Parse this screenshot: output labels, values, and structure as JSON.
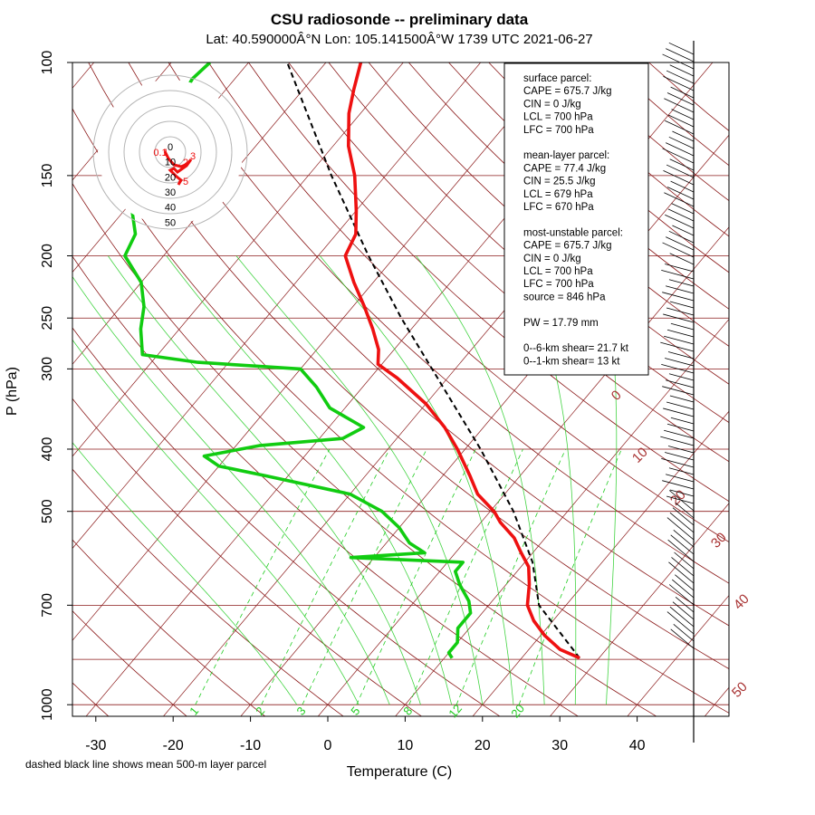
{
  "header": {
    "title": "CSU radiosonde -- preliminary data",
    "subtitle": "Lat: 40.590000Â°N Lon: 105.141500Â°W    1739 UTC  2021-06-27"
  },
  "footnote": "dashed black line shows mean 500-m layer parcel",
  "colors": {
    "temperature": "#ee1111",
    "dewpoint": "#11cc11",
    "isobar": "#8b1a1a",
    "dry_adiabat": "#8b1a1a",
    "mixing_ratio": "#22cc22",
    "moist_adiabat": "#22cc22",
    "parcel": "#000000"
  },
  "chart_data": {
    "type": "skew-t",
    "xlabel": "Temperature (C)",
    "ylabel": "P (hPa)",
    "x_ticks": [
      "-30",
      "-20",
      "-10",
      "0",
      "10",
      "20",
      "30",
      "40"
    ],
    "y_ticks": [
      "100",
      "150",
      "200",
      "250",
      "300",
      "400",
      "500",
      "700",
      "1000"
    ],
    "isobars_hPa": [
      100,
      150,
      200,
      250,
      300,
      400,
      500,
      700,
      850,
      1000
    ],
    "dry_adiabat_labels": [
      "0",
      "10",
      "20",
      "30",
      "40",
      "50"
    ],
    "mixing_ratio_labels": [
      "1",
      "2",
      "3",
      "5",
      "8",
      "12",
      "20"
    ],
    "temperature_profile": [
      {
        "p": 846,
        "t": 27.5
      },
      {
        "p": 820,
        "t": 24.0
      },
      {
        "p": 780,
        "t": 20.5
      },
      {
        "p": 740,
        "t": 17.5
      },
      {
        "p": 700,
        "t": 15.0
      },
      {
        "p": 650,
        "t": 13.0
      },
      {
        "p": 610,
        "t": 11.0
      },
      {
        "p": 580,
        "t": 8.5
      },
      {
        "p": 550,
        "t": 6.0
      },
      {
        "p": 520,
        "t": 2.5
      },
      {
        "p": 500,
        "t": 0.5
      },
      {
        "p": 470,
        "t": -3.5
      },
      {
        "p": 440,
        "t": -6.5
      },
      {
        "p": 400,
        "t": -11.0
      },
      {
        "p": 370,
        "t": -15.0
      },
      {
        "p": 340,
        "t": -20.0
      },
      {
        "p": 310,
        "t": -26.5
      },
      {
        "p": 295,
        "t": -30.5
      },
      {
        "p": 280,
        "t": -32.0
      },
      {
        "p": 260,
        "t": -35.0
      },
      {
        "p": 240,
        "t": -38.5
      },
      {
        "p": 220,
        "t": -42.5
      },
      {
        "p": 200,
        "t": -46.5
      },
      {
        "p": 185,
        "t": -47.5
      },
      {
        "p": 170,
        "t": -50.0
      },
      {
        "p": 150,
        "t": -54.0
      },
      {
        "p": 135,
        "t": -58.0
      },
      {
        "p": 120,
        "t": -61.5
      },
      {
        "p": 110,
        "t": -63.5
      },
      {
        "p": 100,
        "t": -65.5
      }
    ],
    "dewpoint_profile": [
      {
        "p": 846,
        "td": 11.0
      },
      {
        "p": 830,
        "td": 10.0
      },
      {
        "p": 800,
        "td": 10.0
      },
      {
        "p": 760,
        "td": 8.5
      },
      {
        "p": 720,
        "td": 8.5
      },
      {
        "p": 690,
        "td": 7.0
      },
      {
        "p": 650,
        "td": 4.0
      },
      {
        "p": 620,
        "td": 2.0
      },
      {
        "p": 600,
        "td": 2.0
      },
      {
        "p": 590,
        "td": -13.0
      },
      {
        "p": 580,
        "td": -4.0
      },
      {
        "p": 560,
        "td": -7.0
      },
      {
        "p": 530,
        "td": -10.0
      },
      {
        "p": 500,
        "td": -14.0
      },
      {
        "p": 470,
        "td": -20.0
      },
      {
        "p": 440,
        "td": -33.0
      },
      {
        "p": 425,
        "td": -40.0
      },
      {
        "p": 410,
        "td": -43.0
      },
      {
        "p": 395,
        "td": -37.0
      },
      {
        "p": 385,
        "td": -27.0
      },
      {
        "p": 370,
        "td": -25.5
      },
      {
        "p": 345,
        "td": -32.0
      },
      {
        "p": 320,
        "td": -36.0
      },
      {
        "p": 300,
        "td": -40.0
      },
      {
        "p": 293,
        "td": -54.0
      },
      {
        "p": 285,
        "td": -62.0
      },
      {
        "p": 260,
        "td": -65.0
      },
      {
        "p": 240,
        "td": -67.0
      },
      {
        "p": 220,
        "td": -70.0
      },
      {
        "p": 200,
        "td": -75.0
      },
      {
        "p": 185,
        "td": -76.0
      },
      {
        "p": 170,
        "td": -79.0
      },
      {
        "p": 150,
        "td": -82.0
      },
      {
        "p": 140,
        "td": -83.0
      }
    ],
    "dewpoint_upper_segment": [
      {
        "p": 112,
        "td": -85.0
      },
      {
        "p": 106,
        "td": -85.5
      },
      {
        "p": 100,
        "td": -85.0
      }
    ],
    "mean_layer_parcel": [
      {
        "p": 846,
        "t": 27.5
      },
      {
        "p": 700,
        "t": 16.5
      },
      {
        "p": 600,
        "t": 11.0
      },
      {
        "p": 500,
        "t": 3.0
      },
      {
        "p": 400,
        "t": -8.0
      },
      {
        "p": 300,
        "t": -23.0
      },
      {
        "p": 250,
        "t": -32.5
      },
      {
        "p": 200,
        "t": -43.5
      },
      {
        "p": 150,
        "t": -57.0
      },
      {
        "p": 100,
        "t": -75.0
      }
    ],
    "hodograph": {
      "ring_labels": [
        "0",
        "10",
        "20",
        "30",
        "40",
        "50"
      ],
      "heights_labeled": [
        "0.1",
        "1",
        "3",
        "2",
        "5"
      ]
    }
  },
  "stats_box": {
    "lines": [
      "surface parcel:",
      "CAPE = 675.7 J/kg",
      "CIN = 0 J/kg",
      "LCL = 700 hPa",
      "LFC = 700 hPa",
      "",
      "mean-layer parcel:",
      "CAPE = 77.4 J/kg",
      "CIN = 25.5 J/kg",
      "LCL = 679 hPa",
      "LFC = 670 hPa",
      "",
      "most-unstable parcel:",
      "CAPE = 675.7 J/kg",
      "CIN = 0 J/kg",
      "LCL = 700 hPa",
      "LFC = 700 hPa",
      "source = 846 hPa",
      "",
      "PW =  17.79 mm",
      "",
      "0--6-km shear= 21.7 kt",
      "0--1-km shear= 13 kt"
    ]
  }
}
